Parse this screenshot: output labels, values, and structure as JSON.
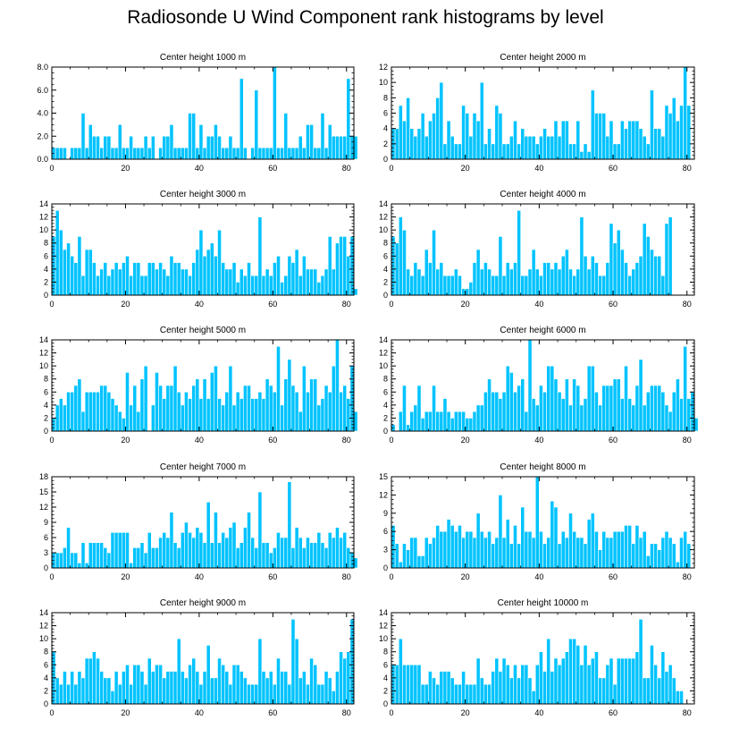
{
  "figure_title": "Radiosonde U Wind Component rank histograms by level",
  "colors": {
    "bar": "#00c3ff",
    "bar_edge": "#ffffff",
    "axis": "#000000"
  },
  "chart_data": [
    {
      "type": "bar",
      "title": "Center height 1000 m",
      "xlim": [
        0,
        82
      ],
      "ylim": [
        0,
        8
      ],
      "xticks": [
        0,
        20,
        40,
        60,
        80
      ],
      "yticks": [
        0,
        2,
        4,
        6,
        8
      ],
      "ytick_labels": [
        "0.0",
        "2.0",
        "4.0",
        "6.0",
        "8.0"
      ],
      "values": [
        1,
        1,
        1,
        1,
        0,
        1,
        1,
        1,
        4,
        1,
        3,
        2,
        2,
        1,
        2,
        2,
        1,
        1,
        3,
        1,
        1,
        2,
        1,
        1,
        1,
        2,
        1,
        2,
        0,
        1,
        2,
        2,
        3,
        1,
        1,
        1,
        1,
        4,
        4,
        1,
        3,
        1,
        2,
        2,
        3,
        2,
        1,
        1,
        2,
        1,
        1,
        7,
        1,
        0,
        1,
        6,
        1,
        1,
        1,
        1,
        8,
        1,
        1,
        4,
        1,
        1,
        1,
        2,
        1,
        3,
        3,
        1,
        1,
        4,
        1,
        3,
        2,
        2,
        2,
        2,
        7,
        2,
        2
      ]
    },
    {
      "type": "bar",
      "title": "Center height 2000 m",
      "xlim": [
        0,
        82
      ],
      "ylim": [
        0,
        12
      ],
      "xticks": [
        0,
        20,
        40,
        60,
        80
      ],
      "yticks": [
        0,
        2,
        4,
        6,
        8,
        10,
        12
      ],
      "ytick_labels": [
        "0",
        "2",
        "4",
        "6",
        "8",
        "10",
        "12"
      ],
      "values": [
        4,
        4,
        7,
        5,
        8,
        4,
        3,
        4,
        6,
        3,
        5,
        6,
        8,
        10,
        2,
        5,
        3,
        2,
        2,
        7,
        6,
        3,
        6,
        5,
        10,
        2,
        4,
        2,
        7,
        6,
        2,
        2,
        3,
        5,
        2,
        4,
        3,
        3,
        3,
        2,
        3,
        4,
        3,
        3,
        5,
        3,
        5,
        5,
        2,
        2,
        5,
        1,
        2,
        1,
        9,
        6,
        6,
        6,
        3,
        5,
        2,
        2,
        5,
        4,
        5,
        5,
        5,
        4,
        3,
        2,
        9,
        4,
        4,
        3,
        7,
        6,
        8,
        5,
        7,
        12,
        7
      ]
    },
    {
      "type": "bar",
      "title": "Center height 3000 m",
      "xlim": [
        0,
        82
      ],
      "ylim": [
        0,
        14
      ],
      "xticks": [
        0,
        20,
        40,
        60,
        80
      ],
      "yticks": [
        0,
        2,
        4,
        6,
        8,
        10,
        12,
        14
      ],
      "ytick_labels": [
        "0",
        "2",
        "4",
        "6",
        "8",
        "10",
        "12",
        "14"
      ],
      "values": [
        9,
        13,
        10,
        7,
        8,
        6,
        5,
        9,
        3,
        7,
        7,
        5,
        3,
        4,
        5,
        3,
        4,
        5,
        4,
        5,
        6,
        3,
        5,
        5,
        3,
        3,
        5,
        5,
        4,
        5,
        4,
        3,
        6,
        5,
        5,
        4,
        4,
        3,
        5,
        7,
        10,
        6,
        7,
        8,
        6,
        10,
        5,
        4,
        4,
        5,
        2,
        4,
        3,
        5,
        3,
        3,
        12,
        3,
        4,
        3,
        5,
        6,
        2,
        3,
        6,
        5,
        7,
        3,
        6,
        4,
        4,
        4,
        2,
        3,
        4,
        9,
        4,
        8,
        9,
        9,
        6,
        9,
        1
      ]
    },
    {
      "type": "bar",
      "title": "Center height 4000 m",
      "xlim": [
        0,
        82
      ],
      "ylim": [
        0,
        14
      ],
      "xticks": [
        0,
        20,
        40,
        60,
        80
      ],
      "yticks": [
        0,
        2,
        4,
        6,
        8,
        10,
        12,
        14
      ],
      "ytick_labels": [
        "0",
        "2",
        "4",
        "6",
        "8",
        "10",
        "12",
        "14"
      ],
      "values": [
        9,
        8,
        12,
        10,
        4,
        3,
        5,
        4,
        3,
        7,
        5,
        10,
        4,
        5,
        3,
        3,
        3,
        4,
        3,
        1,
        1,
        2,
        5,
        7,
        4,
        5,
        4,
        3,
        3,
        9,
        3,
        5,
        4,
        5,
        13,
        3,
        3,
        4,
        7,
        4,
        3,
        5,
        5,
        4,
        5,
        4,
        6,
        7,
        4,
        3,
        4,
        12,
        6,
        4,
        6,
        5,
        3,
        3,
        5,
        11,
        8,
        10,
        7,
        5,
        3,
        4,
        5,
        6,
        11,
        9,
        7,
        6,
        6,
        3,
        11,
        12
      ]
    },
    {
      "type": "bar",
      "title": "Center height 5000 m",
      "xlim": [
        0,
        82
      ],
      "ylim": [
        0,
        14
      ],
      "xticks": [
        0,
        20,
        40,
        60,
        80
      ],
      "yticks": [
        0,
        2,
        4,
        6,
        8,
        10,
        12,
        14
      ],
      "ytick_labels": [
        "0",
        "2",
        "4",
        "6",
        "8",
        "10",
        "12",
        "14"
      ],
      "values": [
        2,
        4,
        5,
        4,
        6,
        6,
        7,
        8,
        3,
        6,
        6,
        6,
        6,
        7,
        7,
        6,
        5,
        4,
        3,
        2,
        9,
        4,
        7,
        3,
        8,
        10,
        0,
        4,
        9,
        7,
        5,
        7,
        7,
        10,
        6,
        4,
        6,
        5,
        7,
        8,
        5,
        8,
        5,
        9,
        10,
        5,
        4,
        6,
        10,
        4,
        6,
        5,
        7,
        7,
        5,
        5,
        6,
        5,
        8,
        7,
        6,
        13,
        4,
        8,
        11,
        7,
        6,
        3,
        10,
        6,
        8,
        8,
        4,
        5,
        7,
        6,
        10,
        14,
        6,
        7,
        5,
        10,
        3
      ]
    },
    {
      "type": "bar",
      "title": "Center height 6000 m",
      "xlim": [
        0,
        82
      ],
      "ylim": [
        0,
        14
      ],
      "xticks": [
        0,
        20,
        40,
        60,
        80
      ],
      "yticks": [
        0,
        2,
        4,
        6,
        8,
        10,
        12,
        14
      ],
      "ytick_labels": [
        "0",
        "2",
        "4",
        "6",
        "8",
        "10",
        "12",
        "14"
      ],
      "values": [
        1,
        0,
        3,
        7,
        1,
        3,
        4,
        7,
        2,
        3,
        3,
        7,
        3,
        3,
        5,
        3,
        2,
        3,
        3,
        3,
        2,
        2,
        3,
        4,
        4,
        6,
        8,
        6,
        6,
        5,
        6,
        10,
        9,
        6,
        7,
        8,
        3,
        14,
        5,
        4,
        7,
        6,
        10,
        10,
        8,
        6,
        5,
        8,
        4,
        8,
        7,
        4,
        5,
        10,
        10,
        6,
        4,
        7,
        7,
        7,
        8,
        8,
        5,
        10,
        5,
        4,
        7,
        11,
        4,
        6,
        7,
        7,
        7,
        6,
        4,
        3,
        6,
        8,
        5,
        13,
        5,
        6,
        2
      ]
    },
    {
      "type": "bar",
      "title": "Center height 7000 m",
      "xlim": [
        0,
        82
      ],
      "ylim": [
        0,
        18
      ],
      "xticks": [
        0,
        20,
        40,
        60,
        80
      ],
      "yticks": [
        0,
        3,
        6,
        9,
        12,
        15,
        18
      ],
      "ytick_labels": [
        "0",
        "3",
        "6",
        "9",
        "12",
        "15",
        "18"
      ],
      "values": [
        3,
        3,
        3,
        4,
        8,
        3,
        3,
        1,
        5,
        1,
        5,
        5,
        5,
        5,
        4,
        3,
        7,
        7,
        7,
        7,
        7,
        1,
        4,
        4,
        5,
        3,
        7,
        4,
        4,
        6,
        7,
        6,
        11,
        5,
        4,
        7,
        9,
        7,
        6,
        8,
        7,
        5,
        13,
        5,
        11,
        5,
        7,
        6,
        8,
        9,
        4,
        5,
        8,
        11,
        6,
        4,
        15,
        5,
        5,
        3,
        4,
        7,
        6,
        6,
        17,
        4,
        8,
        6,
        4,
        6,
        5,
        5,
        7,
        5,
        4,
        7,
        6,
        8,
        6,
        7,
        4,
        3,
        2
      ]
    },
    {
      "type": "bar",
      "title": "Center height 8000 m",
      "xlim": [
        0,
        82
      ],
      "ylim": [
        0,
        15
      ],
      "xticks": [
        0,
        20,
        40,
        60,
        80
      ],
      "yticks": [
        0,
        3,
        6,
        9,
        12,
        15
      ],
      "ytick_labels": [
        "0",
        "3",
        "6",
        "9",
        "12",
        "15"
      ],
      "values": [
        7,
        4,
        1,
        4,
        3,
        5,
        5,
        2,
        2,
        5,
        4,
        5,
        7,
        6,
        6,
        8,
        7,
        6,
        7,
        5,
        6,
        6,
        5,
        9,
        6,
        5,
        6,
        4,
        5,
        12,
        5,
        8,
        4,
        7,
        4,
        10,
        6,
        6,
        5,
        15,
        6,
        4,
        5,
        11,
        10,
        4,
        6,
        5,
        9,
        6,
        5,
        5,
        4,
        8,
        9,
        6,
        3,
        6,
        5,
        5,
        6,
        6,
        6,
        7,
        7,
        4,
        7,
        5,
        6,
        2,
        4,
        4,
        3,
        5,
        6,
        5,
        4,
        1,
        5,
        6,
        4
      ]
    },
    {
      "type": "bar",
      "title": "Center height 9000 m",
      "xlim": [
        0,
        82
      ],
      "ylim": [
        0,
        14
      ],
      "xticks": [
        0,
        20,
        40,
        60,
        80
      ],
      "yticks": [
        0,
        2,
        4,
        6,
        8,
        10,
        12,
        14
      ],
      "ytick_labels": [
        "0",
        "2",
        "4",
        "6",
        "8",
        "10",
        "12",
        "14"
      ],
      "values": [
        8,
        4,
        3,
        5,
        3,
        5,
        3,
        5,
        4,
        7,
        7,
        8,
        7,
        5,
        4,
        4,
        2,
        5,
        3,
        5,
        6,
        3,
        6,
        6,
        5,
        3,
        7,
        5,
        6,
        6,
        4,
        5,
        5,
        5,
        10,
        5,
        4,
        6,
        7,
        5,
        3,
        5,
        9,
        4,
        4,
        7,
        6,
        5,
        3,
        6,
        6,
        5,
        4,
        3,
        3,
        3,
        10,
        5,
        4,
        5,
        3,
        7,
        5,
        5,
        3,
        13,
        10,
        4,
        5,
        3,
        7,
        6,
        3,
        3,
        5,
        4,
        2,
        5,
        8,
        7,
        8,
        13
      ]
    },
    {
      "type": "bar",
      "title": "Center height 10000 m",
      "xlim": [
        0,
        82
      ],
      "ylim": [
        0,
        14
      ],
      "xticks": [
        0,
        20,
        40,
        60,
        80
      ],
      "yticks": [
        0,
        2,
        4,
        6,
        8,
        10,
        12,
        14
      ],
      "ytick_labels": [
        "0",
        "2",
        "4",
        "6",
        "8",
        "10",
        "12",
        "14"
      ],
      "values": [
        6,
        6,
        10,
        6,
        6,
        6,
        6,
        6,
        3,
        3,
        5,
        4,
        3,
        5,
        5,
        5,
        4,
        3,
        3,
        5,
        3,
        3,
        3,
        7,
        4,
        3,
        3,
        5,
        7,
        5,
        7,
        6,
        4,
        6,
        4,
        6,
        6,
        4,
        2,
        6,
        8,
        5,
        10,
        5,
        7,
        6,
        7,
        8,
        10,
        10,
        9,
        6,
        9,
        6,
        7,
        8,
        4,
        4,
        6,
        7,
        3,
        7,
        7,
        7,
        7,
        7,
        8,
        13,
        4,
        4,
        9,
        6,
        4,
        8,
        5,
        6,
        4,
        2,
        2
      ]
    }
  ]
}
